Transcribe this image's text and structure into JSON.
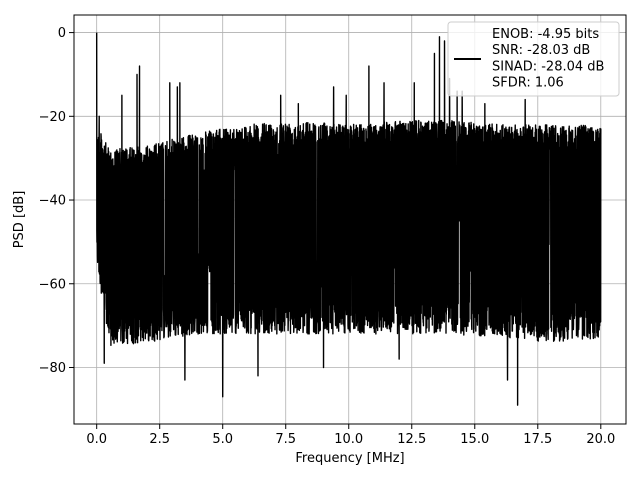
{
  "chart_data": {
    "type": "line",
    "title": "",
    "xlabel": "Frequency [MHz]",
    "ylabel": "PSD [dB]",
    "xlim": [
      -0.9,
      21.0
    ],
    "ylim": [
      -93.5,
      4.2
    ],
    "grid": true,
    "legend_position": "top-right",
    "x_ticks": [
      0.0,
      2.5,
      5.0,
      7.5,
      10.0,
      12.5,
      15.0,
      17.5,
      20.0
    ],
    "x_tick_labels": [
      "0.0",
      "2.5",
      "5.0",
      "7.5",
      "10.0",
      "12.5",
      "15.0",
      "17.5",
      "20.0"
    ],
    "y_ticks": [
      0,
      -20,
      -40,
      -60,
      -80
    ],
    "y_tick_labels": [
      "0",
      "−20",
      "−40",
      "−60",
      "−80"
    ],
    "series": [
      {
        "color": "#000000",
        "x_range": [
          0,
          20
        ],
        "noise_floor_upper": -24,
        "noise_floor_lower": -70,
        "noise_floor_mid": -45,
        "upper_envelope": [
          [
            0.0,
            -22
          ],
          [
            0.5,
            -28
          ],
          [
            2.0,
            -27
          ],
          [
            4.0,
            -24
          ],
          [
            6.0,
            -22
          ],
          [
            8.0,
            -21
          ],
          [
            10.0,
            -22
          ],
          [
            12.0,
            -21
          ],
          [
            14.0,
            -21
          ],
          [
            16.0,
            -22
          ],
          [
            18.0,
            -22
          ],
          [
            20.0,
            -22
          ]
        ],
        "lower_envelope": [
          [
            0.0,
            -55
          ],
          [
            0.5,
            -75
          ],
          [
            2.0,
            -74
          ],
          [
            4.0,
            -72
          ],
          [
            6.0,
            -72
          ],
          [
            8.0,
            -72
          ],
          [
            10.0,
            -72
          ],
          [
            12.0,
            -72
          ],
          [
            14.0,
            -72
          ],
          [
            16.0,
            -73
          ],
          [
            18.0,
            -74
          ],
          [
            20.0,
            -73
          ]
        ],
        "peaks": [
          [
            0.0,
            0
          ],
          [
            0.1,
            -20
          ],
          [
            1.0,
            -15
          ],
          [
            1.6,
            -10
          ],
          [
            1.7,
            -8
          ],
          [
            2.9,
            -12
          ],
          [
            3.2,
            -13
          ],
          [
            3.3,
            -12
          ],
          [
            7.3,
            -15
          ],
          [
            8.0,
            -17
          ],
          [
            9.4,
            -13
          ],
          [
            9.9,
            -15
          ],
          [
            10.8,
            -8
          ],
          [
            11.4,
            -12
          ],
          [
            12.6,
            -12
          ],
          [
            13.4,
            -5
          ],
          [
            13.6,
            -1
          ],
          [
            13.8,
            -2
          ],
          [
            14.0,
            -11
          ],
          [
            14.3,
            -14
          ],
          [
            14.5,
            -14
          ],
          [
            15.4,
            -17
          ],
          [
            17.0,
            -16
          ]
        ],
        "dips": [
          [
            0.3,
            -79
          ],
          [
            3.5,
            -83
          ],
          [
            5.0,
            -87
          ],
          [
            6.4,
            -82
          ],
          [
            16.7,
            -89
          ],
          [
            16.3,
            -83
          ],
          [
            9.0,
            -80
          ],
          [
            12.0,
            -78
          ]
        ]
      }
    ],
    "legend": {
      "lines": [
        "ENOB: -4.95 bits",
        "SNR: -28.03 dB",
        "SINAD: -28.04 dB",
        "SFDR: 1.06"
      ]
    }
  }
}
